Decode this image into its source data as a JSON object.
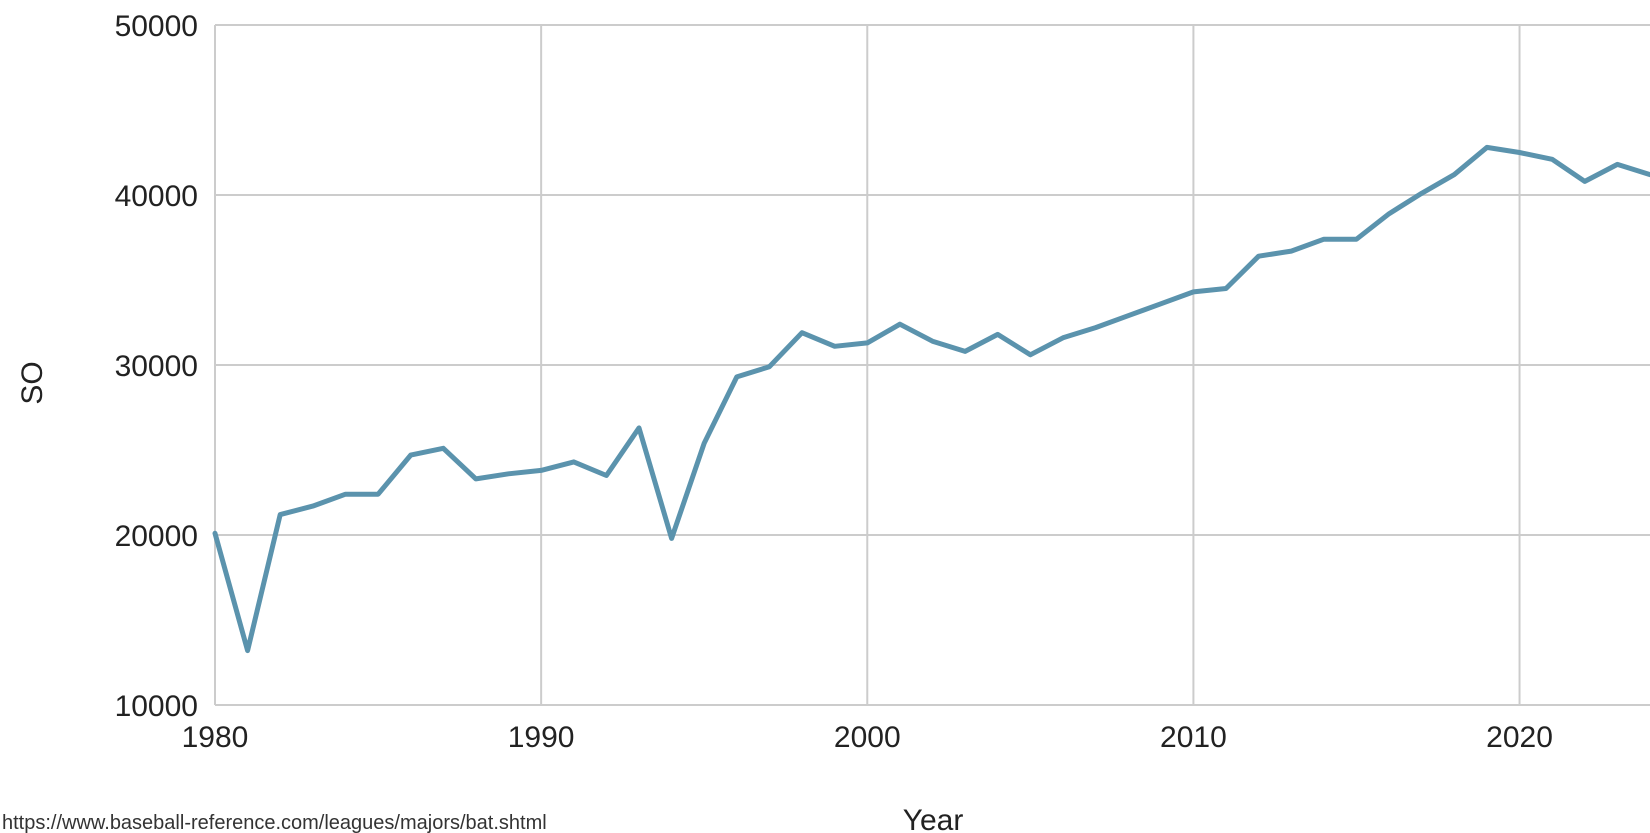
{
  "chart_data": {
    "type": "line",
    "title": "",
    "xlabel": "Year",
    "ylabel": "SO",
    "xlim": [
      1980,
      2024
    ],
    "ylim": [
      10000,
      50000
    ],
    "x_ticks": [
      1980,
      1990,
      2000,
      2010,
      2020
    ],
    "y_ticks": [
      10000,
      20000,
      30000,
      40000,
      50000
    ],
    "grid": true,
    "legend": "none",
    "series": [
      {
        "color": "#5b93ad",
        "x": [
          1980,
          1981,
          1982,
          1983,
          1984,
          1985,
          1986,
          1987,
          1988,
          1989,
          1990,
          1991,
          1992,
          1993,
          1994,
          1995,
          1996,
          1997,
          1998,
          1999,
          2000,
          2001,
          2002,
          2003,
          2004,
          2005,
          2006,
          2007,
          2008,
          2009,
          2010,
          2011,
          2012,
          2013,
          2014,
          2015,
          2016,
          2017,
          2018,
          2019,
          2020,
          2021,
          2022,
          2023,
          2024
        ],
        "y": [
          20100,
          13200,
          21200,
          21700,
          22400,
          22400,
          24700,
          25100,
          23300,
          23600,
          23800,
          24300,
          23500,
          26300,
          19800,
          25400,
          29300,
          29900,
          31900,
          31100,
          31300,
          32400,
          31400,
          30800,
          31800,
          30600,
          31600,
          32200,
          32900,
          33600,
          34300,
          34500,
          36400,
          36700,
          37400,
          37400,
          38900,
          40100,
          41200,
          42800,
          42500,
          42100,
          40800,
          41800,
          41200
        ]
      }
    ]
  },
  "source_note": "https://www.baseball-reference.com/leagues/majors/bat.shtml"
}
